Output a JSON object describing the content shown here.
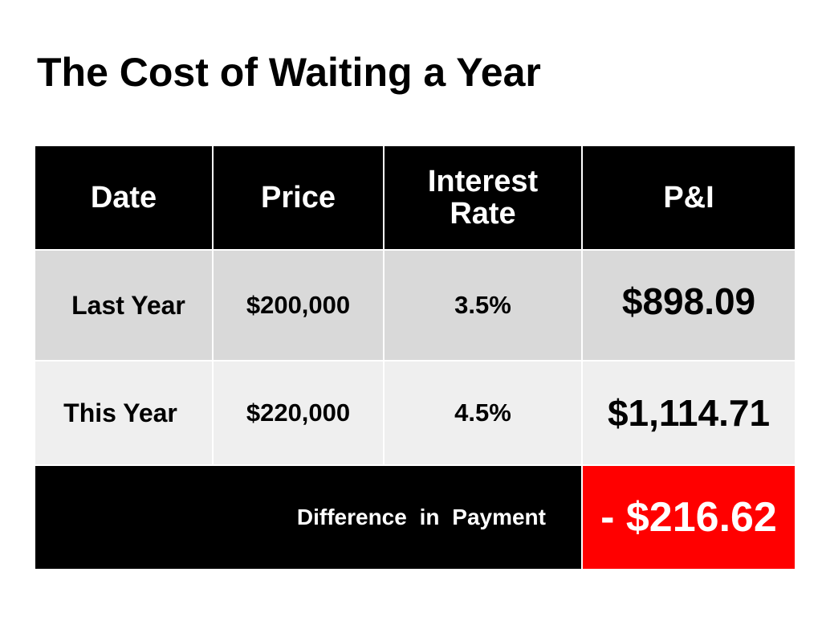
{
  "title": "The Cost of Waiting a Year",
  "table": {
    "headers": {
      "date": "Date",
      "price": "Price",
      "rate_line1": "Interest",
      "rate_line2": "Rate",
      "pi": "P&I"
    },
    "rows": [
      {
        "date": "Last Year",
        "price": "$200,000",
        "rate": "3.5%",
        "pi": "$898.09"
      },
      {
        "date": "This Year",
        "price": "$220,000",
        "rate": "4.5%",
        "pi": "$1,114.71"
      }
    ],
    "difference": {
      "label": "Difference in Payment",
      "value": "- $216.62"
    }
  },
  "colors": {
    "header_bg": "#000000",
    "row1_bg": "#d9d9d9",
    "row2_bg": "#efefef",
    "highlight": "#ff0000",
    "text_light": "#ffffff",
    "text_dark": "#000000"
  }
}
